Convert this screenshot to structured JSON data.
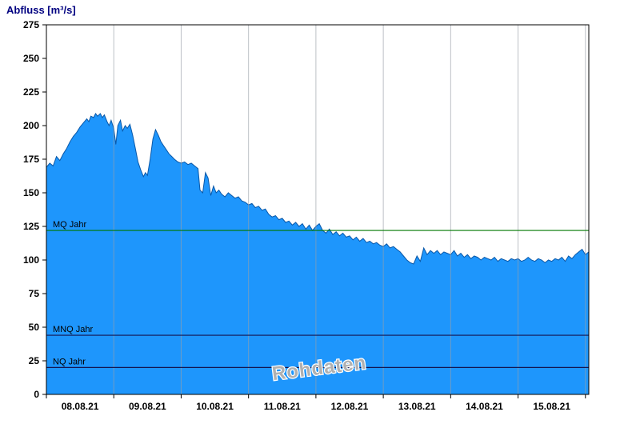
{
  "colors": {
    "area_fill": "#1e96fc",
    "area_stroke": "#0a58a8",
    "grid": "#9aa0a8",
    "border": "#000000",
    "title": "#000080",
    "watermark_fill": "#b0b0b0",
    "watermark_halo": "#ffffff",
    "mq_line": "#007800",
    "low_line": "#141450"
  },
  "chart_data": {
    "type": "area",
    "title": "Abfluss [m³/s]",
    "watermark": "Rohdaten",
    "x_unit": "days since 08.08.21 00:00",
    "x_span": 8.05,
    "x_tick_labels": [
      "08.08.21",
      "09.08.21",
      "10.08.21",
      "11.08.21",
      "12.08.21",
      "13.08.21",
      "14.08.21",
      "15.08.21"
    ],
    "ylim": [
      0,
      275
    ],
    "y_ticks": [
      0,
      25,
      50,
      75,
      100,
      125,
      150,
      175,
      200,
      225,
      250,
      275
    ],
    "reference_lines": [
      {
        "label": "MQ Jahr",
        "value": 122,
        "color": "#007800"
      },
      {
        "label": "MNQ Jahr",
        "value": 44,
        "color": "#141450"
      },
      {
        "label": "NQ Jahr",
        "value": 20,
        "color": "#141450"
      }
    ],
    "series": [
      {
        "name": "Abfluss",
        "points": [
          [
            0,
            169
          ],
          [
            0.05,
            172
          ],
          [
            0.1,
            170
          ],
          [
            0.15,
            177
          ],
          [
            0.2,
            174
          ],
          [
            0.25,
            179
          ],
          [
            0.3,
            183
          ],
          [
            0.35,
            188
          ],
          [
            0.4,
            192
          ],
          [
            0.45,
            195
          ],
          [
            0.5,
            199
          ],
          [
            0.55,
            202
          ],
          [
            0.6,
            205
          ],
          [
            0.63,
            203
          ],
          [
            0.66,
            207
          ],
          [
            0.7,
            206
          ],
          [
            0.73,
            209
          ],
          [
            0.76,
            207
          ],
          [
            0.8,
            209
          ],
          [
            0.83,
            206
          ],
          [
            0.86,
            208
          ],
          [
            0.9,
            203
          ],
          [
            0.93,
            200
          ],
          [
            0.96,
            204
          ],
          [
            1.0,
            198
          ],
          [
            1.03,
            186
          ],
          [
            1.06,
            200
          ],
          [
            1.1,
            204
          ],
          [
            1.13,
            196
          ],
          [
            1.17,
            200
          ],
          [
            1.2,
            198
          ],
          [
            1.24,
            201
          ],
          [
            1.28,
            193
          ],
          [
            1.32,
            183
          ],
          [
            1.36,
            173
          ],
          [
            1.4,
            167
          ],
          [
            1.44,
            162
          ],
          [
            1.47,
            165
          ],
          [
            1.5,
            163
          ],
          [
            1.54,
            175
          ],
          [
            1.58,
            190
          ],
          [
            1.62,
            197
          ],
          [
            1.66,
            193
          ],
          [
            1.7,
            188
          ],
          [
            1.74,
            185
          ],
          [
            1.78,
            182
          ],
          [
            1.82,
            179
          ],
          [
            1.86,
            177
          ],
          [
            1.9,
            175
          ],
          [
            1.95,
            173
          ],
          [
            2.0,
            172
          ],
          [
            2.05,
            173
          ],
          [
            2.1,
            171
          ],
          [
            2.15,
            172
          ],
          [
            2.2,
            170
          ],
          [
            2.25,
            168
          ],
          [
            2.28,
            152
          ],
          [
            2.32,
            150
          ],
          [
            2.36,
            165
          ],
          [
            2.4,
            161
          ],
          [
            2.44,
            148
          ],
          [
            2.48,
            155
          ],
          [
            2.52,
            150
          ],
          [
            2.56,
            152
          ],
          [
            2.6,
            149
          ],
          [
            2.65,
            147
          ],
          [
            2.7,
            150
          ],
          [
            2.75,
            148
          ],
          [
            2.8,
            146
          ],
          [
            2.85,
            147
          ],
          [
            2.9,
            144
          ],
          [
            2.95,
            143
          ],
          [
            3.0,
            141
          ],
          [
            3.05,
            142
          ],
          [
            3.1,
            139
          ],
          [
            3.15,
            140
          ],
          [
            3.2,
            137
          ],
          [
            3.25,
            138
          ],
          [
            3.3,
            134
          ],
          [
            3.35,
            132
          ],
          [
            3.4,
            133
          ],
          [
            3.45,
            130
          ],
          [
            3.5,
            131
          ],
          [
            3.55,
            128
          ],
          [
            3.6,
            129
          ],
          [
            3.65,
            126
          ],
          [
            3.7,
            128
          ],
          [
            3.75,
            125
          ],
          [
            3.8,
            127
          ],
          [
            3.85,
            123
          ],
          [
            3.9,
            126
          ],
          [
            3.95,
            122
          ],
          [
            4.0,
            125
          ],
          [
            4.05,
            127
          ],
          [
            4.1,
            122
          ],
          [
            4.15,
            120
          ],
          [
            4.2,
            123
          ],
          [
            4.25,
            119
          ],
          [
            4.3,
            121
          ],
          [
            4.35,
            118
          ],
          [
            4.4,
            120
          ],
          [
            4.45,
            117
          ],
          [
            4.5,
            118
          ],
          [
            4.55,
            115
          ],
          [
            4.6,
            117
          ],
          [
            4.65,
            114
          ],
          [
            4.7,
            116
          ],
          [
            4.75,
            113
          ],
          [
            4.8,
            114
          ],
          [
            4.85,
            112
          ],
          [
            4.9,
            113
          ],
          [
            4.95,
            111
          ],
          [
            5.0,
            110
          ],
          [
            5.05,
            112
          ],
          [
            5.1,
            109
          ],
          [
            5.15,
            110
          ],
          [
            5.2,
            108
          ],
          [
            5.25,
            106
          ],
          [
            5.3,
            103
          ],
          [
            5.35,
            100
          ],
          [
            5.4,
            98
          ],
          [
            5.45,
            97
          ],
          [
            5.5,
            103
          ],
          [
            5.55,
            99
          ],
          [
            5.6,
            109
          ],
          [
            5.65,
            104
          ],
          [
            5.7,
            107
          ],
          [
            5.75,
            105
          ],
          [
            5.8,
            107
          ],
          [
            5.85,
            104
          ],
          [
            5.9,
            106
          ],
          [
            5.95,
            105
          ],
          [
            6.0,
            104
          ],
          [
            6.05,
            107
          ],
          [
            6.1,
            103
          ],
          [
            6.15,
            105
          ],
          [
            6.2,
            102
          ],
          [
            6.25,
            104
          ],
          [
            6.3,
            101
          ],
          [
            6.35,
            103
          ],
          [
            6.4,
            102
          ],
          [
            6.45,
            100
          ],
          [
            6.5,
            102
          ],
          [
            6.55,
            101
          ],
          [
            6.6,
            100
          ],
          [
            6.65,
            102
          ],
          [
            6.7,
            99
          ],
          [
            6.75,
            101
          ],
          [
            6.8,
            100
          ],
          [
            6.85,
            99
          ],
          [
            6.9,
            101
          ],
          [
            6.95,
            100
          ],
          [
            7.0,
            101
          ],
          [
            7.05,
            99
          ],
          [
            7.1,
            100
          ],
          [
            7.15,
            102
          ],
          [
            7.2,
            100
          ],
          [
            7.25,
            99
          ],
          [
            7.3,
            101
          ],
          [
            7.35,
            100
          ],
          [
            7.4,
            98
          ],
          [
            7.45,
            100
          ],
          [
            7.5,
            99
          ],
          [
            7.55,
            101
          ],
          [
            7.6,
            100
          ],
          [
            7.65,
            102
          ],
          [
            7.7,
            99
          ],
          [
            7.75,
            103
          ],
          [
            7.8,
            101
          ],
          [
            7.85,
            104
          ],
          [
            7.9,
            106
          ],
          [
            7.95,
            108
          ],
          [
            8.0,
            104
          ],
          [
            8.05,
            106
          ]
        ]
      }
    ]
  }
}
